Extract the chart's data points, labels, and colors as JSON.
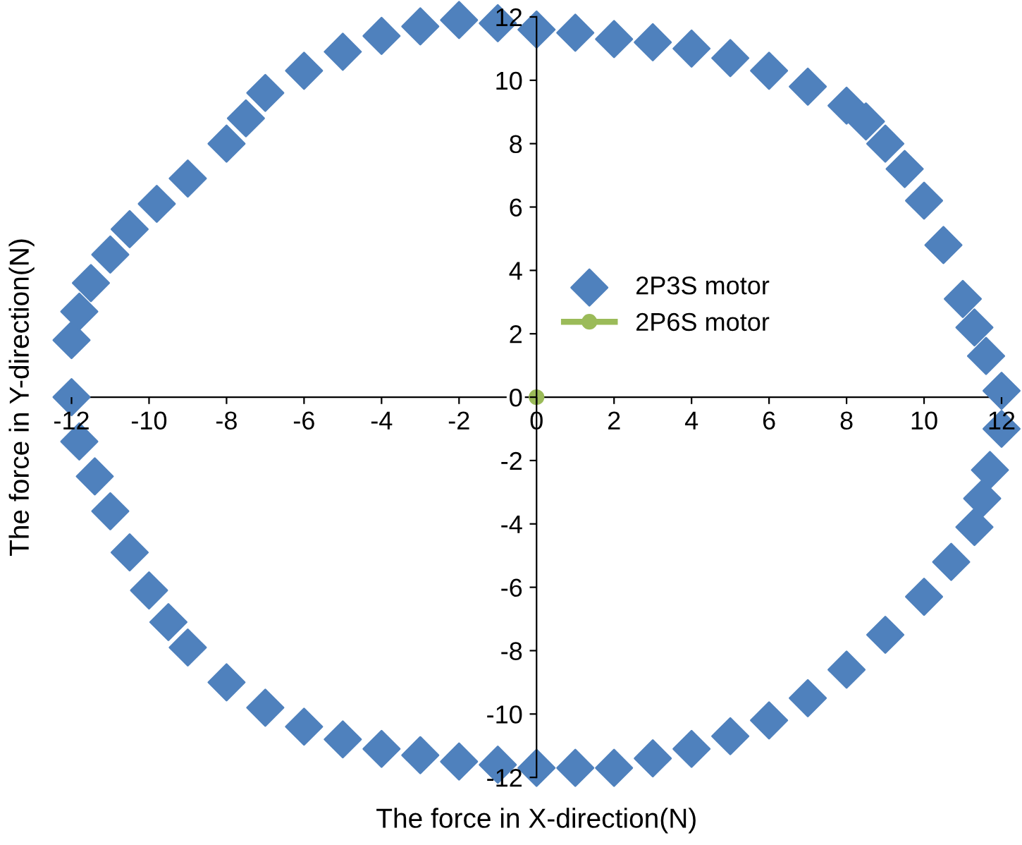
{
  "chart_data": {
    "type": "line",
    "xlabel": "The force in X-direction(N)",
    "ylabel": "The force in Y-direction(N)",
    "series": [
      {
        "name": "2P3S motor",
        "type": "scatter",
        "color": "#4f81bd",
        "marker": "diamond",
        "x": [
          -2,
          -1,
          0,
          1,
          2,
          3,
          4,
          5,
          6,
          7,
          8,
          8.5,
          9,
          9.5,
          10,
          10.5,
          11,
          11.3,
          11.6,
          12,
          12,
          11.7,
          11.5,
          11.3,
          10.7,
          10,
          9,
          8,
          7,
          6,
          5,
          4,
          3,
          2,
          1,
          0,
          -1,
          -2,
          -3,
          -4,
          -5,
          -6,
          -7,
          -8,
          -9,
          -9.5,
          -10,
          -10.5,
          -11,
          -11.4,
          -11.8,
          -12,
          -12,
          -11.8,
          -11.5,
          -11,
          -10.5,
          -9.8,
          -9,
          -8,
          -7.5,
          -7,
          -6,
          -5,
          -4,
          -3
        ],
        "values": [
          11.9,
          11.8,
          11.6,
          11.5,
          11.3,
          11.2,
          11.0,
          10.7,
          10.3,
          9.8,
          9.2,
          8.7,
          8.0,
          7.2,
          6.2,
          4.8,
          3.1,
          2.2,
          1.3,
          0.2,
          -1.0,
          -2.3,
          -3.2,
          -4.1,
          -5.2,
          -6.3,
          -7.5,
          -8.6,
          -9.5,
          -10.2,
          -10.7,
          -11.1,
          -11.4,
          -11.7,
          -11.7,
          -11.7,
          -11.6,
          -11.5,
          -11.3,
          -11.1,
          -10.8,
          -10.4,
          -9.8,
          -9.0,
          -7.9,
          -7.1,
          -6.1,
          -4.9,
          -3.6,
          -2.5,
          -1.4,
          0,
          1.8,
          2.7,
          3.6,
          4.5,
          5.3,
          6.1,
          6.9,
          8.0,
          8.8,
          9.6,
          10.3,
          10.9,
          11.4,
          11.7
        ]
      },
      {
        "name": "2P6S motor",
        "color": "#9bbb59",
        "marker": "circle",
        "x": [
          0
        ],
        "values": [
          0
        ]
      }
    ],
    "xlim": [
      -12,
      12
    ],
    "ylim": [
      -12,
      12
    ],
    "xticks": [
      -12,
      -10,
      -8,
      -6,
      -4,
      -2,
      0,
      2,
      4,
      6,
      8,
      10,
      12
    ],
    "yticks": [
      -12,
      -10,
      -8,
      -6,
      -4,
      -2,
      0,
      2,
      4,
      6,
      8,
      10,
      12
    ],
    "legend": "center",
    "grid": false
  }
}
